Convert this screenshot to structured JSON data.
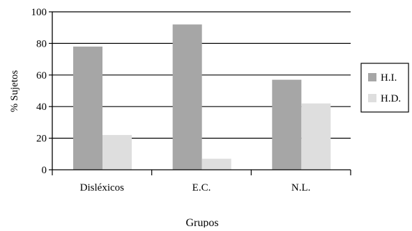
{
  "chart_data": {
    "type": "bar",
    "title": "",
    "xlabel": "Grupos",
    "ylabel": "% Sujetos",
    "categories": [
      "Disléxicos",
      "E.C.",
      "N.L."
    ],
    "series": [
      {
        "name": "H.I.",
        "values": [
          78,
          92,
          57
        ],
        "color": "#a6a6a6"
      },
      {
        "name": "H.D.",
        "values": [
          22,
          7,
          42
        ],
        "color": "#dedede"
      }
    ],
    "ylim": [
      0,
      100
    ],
    "yticks": [
      0,
      20,
      40,
      60,
      80,
      100
    ],
    "grid": true,
    "legend_position": "right"
  }
}
